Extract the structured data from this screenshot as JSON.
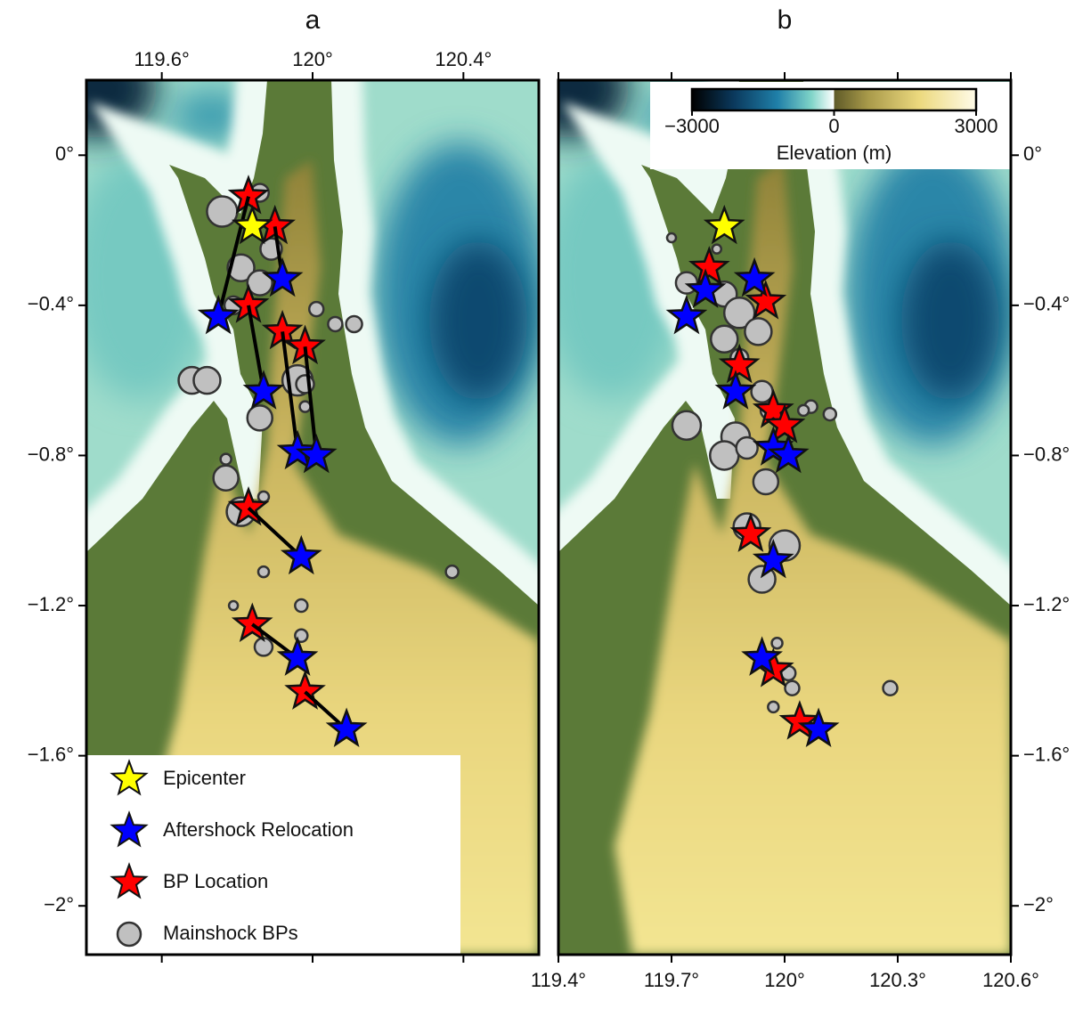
{
  "chart_data": [
    {
      "type": "scatter",
      "title": "a",
      "xlim": [
        119.4,
        120.6
      ],
      "ylim": [
        -2.13,
        0.2
      ],
      "xticks": [
        {
          "value": 119.6,
          "label": "119.6°"
        },
        {
          "value": 120,
          "label": "120°"
        },
        {
          "value": 120.4,
          "label": "120.4°"
        }
      ],
      "xtick_side": "top",
      "yticks": [
        {
          "value": 0,
          "label": "0°"
        },
        {
          "value": -0.4,
          "label": "−0.4°"
        },
        {
          "value": -0.8,
          "label": "−0.8°"
        },
        {
          "value": -1.2,
          "label": "−1.2°"
        },
        {
          "value": -1.6,
          "label": "−1.6°"
        },
        {
          "value": -2,
          "label": "−2°"
        }
      ],
      "ytick_side": "left",
      "legend": "lower left",
      "connect_series": [
        1,
        2
      ],
      "series": [
        {
          "name": "Epicenter",
          "color": "#ffff00",
          "marker": "star",
          "x": [
            119.84
          ],
          "values": [
            -0.19
          ]
        },
        {
          "name": "Aftershock Relocation",
          "color": "#0000ff",
          "marker": "star",
          "x": [
            119.75,
            119.92,
            119.87,
            119.96,
            120.01,
            119.97,
            119.96,
            120.09
          ],
          "values": [
            -0.43,
            -0.33,
            -0.63,
            -0.79,
            -0.8,
            -1.07,
            -1.34,
            -1.53
          ]
        },
        {
          "name": "BP Location",
          "color": "#ff0000",
          "marker": "star",
          "x": [
            119.83,
            119.9,
            119.83,
            119.92,
            119.98,
            119.83,
            119.84,
            119.98
          ],
          "values": [
            -0.11,
            -0.19,
            -0.4,
            -0.47,
            -0.51,
            -0.94,
            -1.25,
            -1.43
          ]
        },
        {
          "name": "Mainshock BPs",
          "color": "#c0c0c0",
          "marker": "circle",
          "x": [
            119.76,
            119.86,
            119.81,
            119.86,
            119.89,
            119.79,
            120.01,
            120.06,
            120.11,
            119.96,
            119.98,
            119.68,
            119.72,
            119.86,
            119.77,
            119.77,
            119.81,
            119.87,
            119.79,
            119.87,
            119.97,
            119.97,
            119.87,
            120.37,
            119.98
          ],
          "values": [
            -0.15,
            -0.1,
            -0.3,
            -0.34,
            -0.25,
            -0.4,
            -0.41,
            -0.45,
            -0.45,
            -0.6,
            -0.61,
            -0.6,
            -0.6,
            -0.7,
            -0.86,
            -0.81,
            -0.95,
            -0.91,
            -1.2,
            -1.11,
            -1.2,
            -1.28,
            -1.31,
            -1.11,
            -0.67
          ],
          "sizes": [
            17,
            10,
            15,
            14,
            12,
            10,
            8,
            8,
            9,
            17,
            10,
            15,
            15,
            14,
            14,
            6,
            16,
            6,
            5,
            6,
            7,
            7,
            10,
            7,
            6
          ]
        }
      ]
    },
    {
      "type": "scatter",
      "title": "b",
      "xlim": [
        119.4,
        120.6
      ],
      "ylim": [
        -2.13,
        0.2
      ],
      "xticks": [
        {
          "value": 119.4,
          "label": "119.4°"
        },
        {
          "value": 119.7,
          "label": "119.7°"
        },
        {
          "value": 120,
          "label": "120°"
        },
        {
          "value": 120.3,
          "label": "120.3°"
        },
        {
          "value": 120.6,
          "label": "120.6°"
        }
      ],
      "xtick_side": "bottom",
      "yticks": [
        {
          "value": 0,
          "label": "0°"
        },
        {
          "value": -0.4,
          "label": "−0.4°"
        },
        {
          "value": -0.8,
          "label": "−0.8°"
        },
        {
          "value": -1.2,
          "label": "−1.2°"
        },
        {
          "value": -1.6,
          "label": "−1.6°"
        },
        {
          "value": -2,
          "label": "−2°"
        }
      ],
      "ytick_side": "right",
      "colorbar": {
        "lim": [
          -3000,
          3000
        ],
        "ticks": [
          {
            "value": -3000,
            "label": "−3000"
          },
          0,
          3000
        ],
        "label": "Elevation (m)"
      },
      "series": [
        {
          "color": "#ffff00",
          "marker": "star",
          "x": [
            119.84
          ],
          "values": [
            -0.19
          ]
        },
        {
          "color": "#0000ff",
          "marker": "star",
          "x": [
            119.74,
            119.79,
            119.92,
            119.87,
            119.97,
            120.01,
            119.97,
            119.94,
            120.09
          ],
          "values": [
            -0.43,
            -0.36,
            -0.33,
            -0.63,
            -0.78,
            -0.8,
            -1.08,
            -1.34,
            -1.53
          ]
        },
        {
          "color": "#ff0000",
          "marker": "star",
          "x": [
            119.8,
            119.95,
            119.88,
            119.97,
            120.0,
            119.91,
            119.97,
            120.04
          ],
          "values": [
            -0.3,
            -0.39,
            -0.56,
            -0.68,
            -0.72,
            -1.01,
            -1.37,
            -1.51
          ]
        },
        {
          "color": "#c0c0c0",
          "marker": "circle",
          "x": [
            119.7,
            119.82,
            119.74,
            119.84,
            119.88,
            119.93,
            119.84,
            119.88,
            119.94,
            119.96,
            120.07,
            120.05,
            120.12,
            119.74,
            119.87,
            119.84,
            119.9,
            119.95,
            119.9,
            120.0,
            119.94,
            119.98,
            120.01,
            120.02,
            120.28,
            119.97
          ],
          "values": [
            -0.22,
            -0.25,
            -0.34,
            -0.37,
            -0.42,
            -0.47,
            -0.49,
            -0.54,
            -0.63,
            -0.68,
            -0.67,
            -0.68,
            -0.69,
            -0.72,
            -0.75,
            -0.8,
            -0.78,
            -0.87,
            -0.99,
            -1.04,
            -1.13,
            -1.3,
            -1.38,
            -1.42,
            -1.42,
            -1.47
          ],
          "sizes": [
            5,
            5,
            12,
            14,
            17,
            15,
            15,
            10,
            12,
            10,
            7,
            6,
            7,
            16,
            16,
            16,
            12,
            14,
            15,
            17,
            15,
            6,
            8,
            8,
            8,
            6
          ]
        }
      ]
    }
  ]
}
